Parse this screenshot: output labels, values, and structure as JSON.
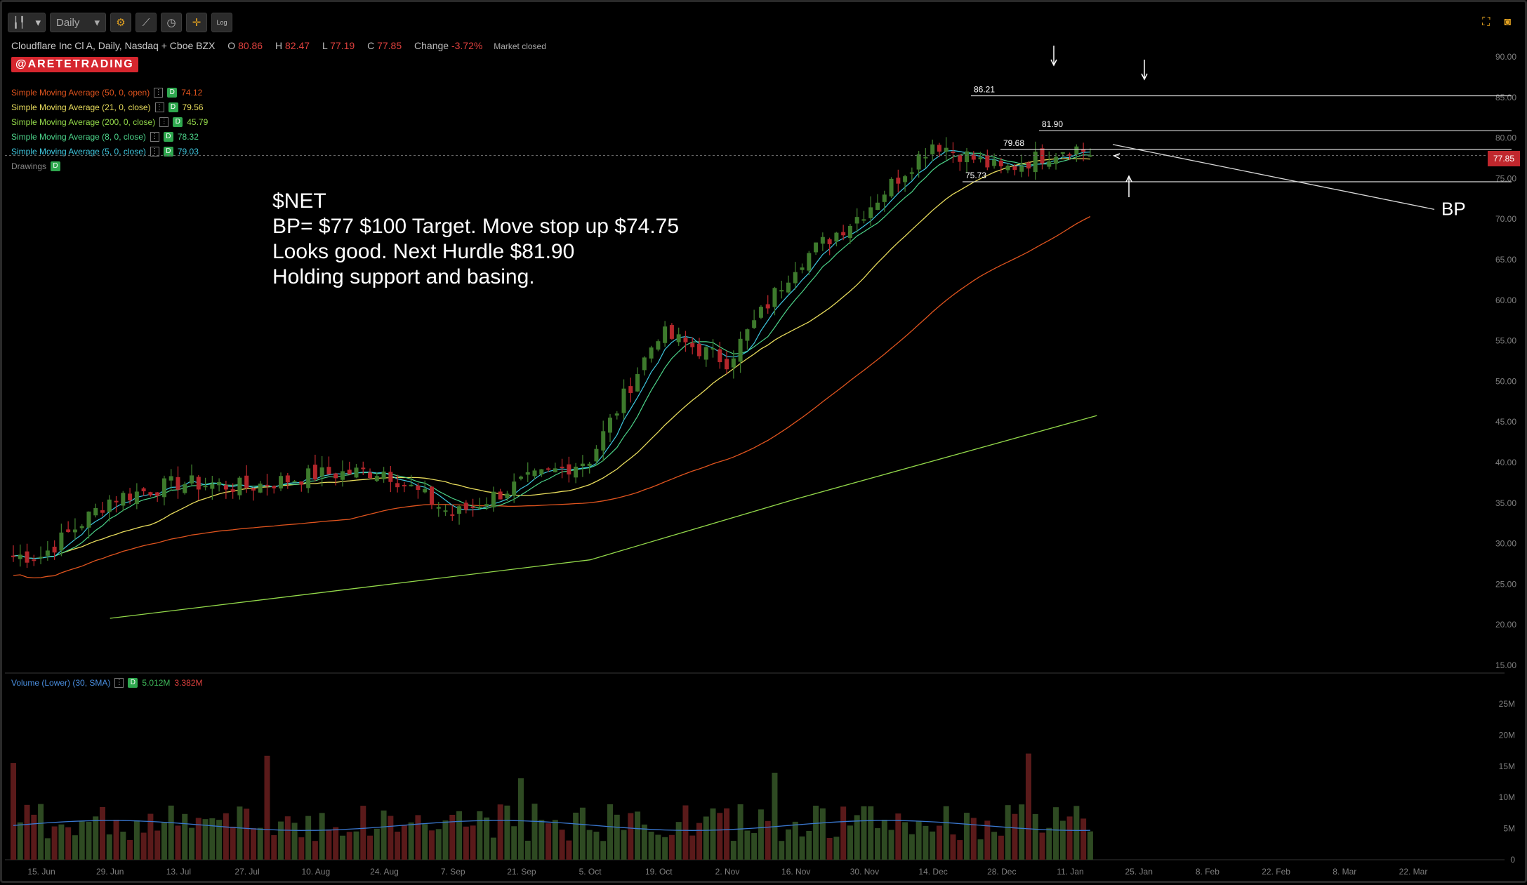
{
  "toolbar": {
    "timeframe": "Daily",
    "log_label": "Log"
  },
  "header": {
    "title": "Cloudflare Inc Cl A, Daily, Nasdaq + Cboe BZX",
    "open_label": "O",
    "open": "80.86",
    "high_label": "H",
    "high": "82.47",
    "low_label": "L",
    "low": "77.19",
    "close_label": "C",
    "close": "77.85",
    "change_label": "Change",
    "change": "-3.72%",
    "market_status": "Market closed"
  },
  "brand": "@ARETETRADING",
  "studies": [
    {
      "label": "Simple Moving Average (50, 0, open)",
      "badge": "D",
      "value": "74.12",
      "color": "#e0541e"
    },
    {
      "label": "Simple Moving Average (21, 0, close)",
      "badge": "D",
      "value": "79.56",
      "color": "#e8dc5c"
    },
    {
      "label": "Simple Moving Average (200, 0, close)",
      "badge": "D",
      "value": "45.79",
      "color": "#93d94a"
    },
    {
      "label": "Simple Moving Average (8, 0, close)",
      "badge": "D",
      "value": "78.32",
      "color": "#4cd48a"
    },
    {
      "label": "Simple Moving Average (5, 0, close)",
      "badge": "D",
      "value": "79.03",
      "color": "#3ec8e0"
    }
  ],
  "drawings": {
    "label": "Drawings",
    "badge": "D"
  },
  "volume_study": {
    "label": "Volume (Lower) (30, SMA)",
    "badge": "D",
    "value": "5.012M",
    "sma_value": "3.382M"
  },
  "annotation": "$NET\nBP= $77 $100 Target. Move stop up $74.75\nLooks good. Next Hurdle $81.90\nHolding support and basing.",
  "last_price": "77.85",
  "bp_label": "BP",
  "levels": [
    {
      "label": "86.21",
      "value": 85.2
    },
    {
      "label": "81.90",
      "value": 80.9
    },
    {
      "label": "79.68",
      "value": 78.6
    },
    {
      "label": "75.73",
      "value": 74.6
    }
  ],
  "chart_data": {
    "type": "candlestick",
    "y_ticks": [
      "90.00",
      "85.00",
      "80.00",
      "75.00",
      "70.00",
      "65.00",
      "60.00",
      "55.00",
      "50.00",
      "45.00",
      "40.00",
      "35.00",
      "30.00",
      "25.00",
      "20.00",
      "15.00"
    ],
    "ylim": [
      15,
      90
    ],
    "volume_ticks": [
      "25M",
      "20M",
      "15M",
      "10M",
      "5M",
      "0"
    ],
    "x_ticks": [
      "15. Jun",
      "29. Jun",
      "13. Jul",
      "27. Jul",
      "10. Aug",
      "24. Aug",
      "7. Sep",
      "21. Sep",
      "5. Oct",
      "19. Oct",
      "2. Nov",
      "16. Nov",
      "30. Nov",
      "14. Dec",
      "28. Dec",
      "11. Jan",
      "25. Jan",
      "8. Feb",
      "22. Feb",
      "8. Mar",
      "22. Mar"
    ],
    "anchors": [
      {
        "date": "15. Jun",
        "close": 28.5
      },
      {
        "date": "29. Jun",
        "close": 35.5
      },
      {
        "date": "13. Jul",
        "close": 37.5
      },
      {
        "date": "27. Jul",
        "close": 37.0
      },
      {
        "date": "10. Aug",
        "close": 38.5
      },
      {
        "date": "24. Aug",
        "close": 39.0
      },
      {
        "date": "7. Sep",
        "close": 33.5
      },
      {
        "date": "21. Sep",
        "close": 37.5
      },
      {
        "date": "5. Oct",
        "close": 40.5
      },
      {
        "date": "19. Oct",
        "close": 56.0
      },
      {
        "date": "2. Nov",
        "close": 52.5
      },
      {
        "date": "16. Nov",
        "close": 64.5
      },
      {
        "date": "30. Nov",
        "close": 71.0
      },
      {
        "date": "14. Dec",
        "close": 79.5
      },
      {
        "date": "28. Dec",
        "close": 76.0
      },
      {
        "date": "11. Jan",
        "close": 79.0
      },
      {
        "date": "15. Jan",
        "close": 77.85
      }
    ],
    "sma200": [
      {
        "date": "29. Jun",
        "value": 20.8
      },
      {
        "date": "5. Oct",
        "value": 28.0
      },
      {
        "date": "16. Nov",
        "value": 35.5
      },
      {
        "date": "15. Jan",
        "value": 45.79
      }
    ],
    "grid": false
  }
}
